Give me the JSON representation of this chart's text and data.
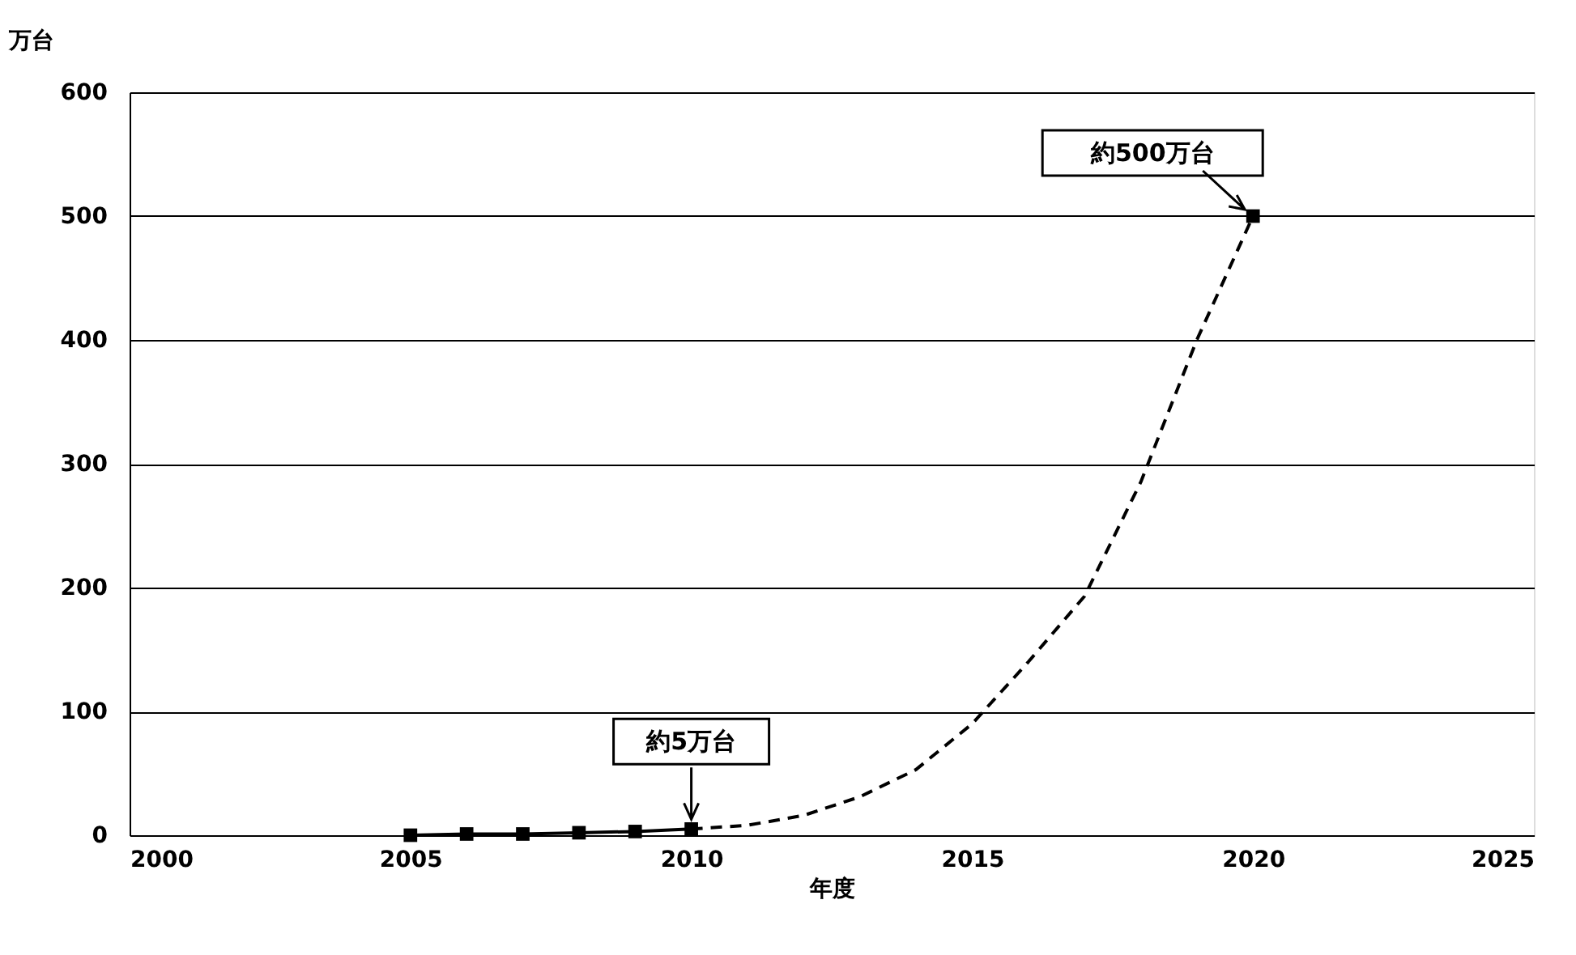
{
  "chart_data": {
    "type": "line",
    "xlabel": "年度",
    "ylabel": "万台",
    "series": [
      {
        "color": "#000000",
        "marker": "square",
        "line_style": "solid",
        "x": [
          2005,
          2006,
          2007,
          2008,
          2009,
          2010
        ],
        "values": [
          0,
          1,
          1,
          2,
          3,
          5
        ]
      },
      {
        "color": "#000000",
        "marker": "none",
        "line_style": "dashed",
        "x": [
          2010,
          2011,
          2012,
          2013,
          2014,
          2015,
          2016,
          2017,
          2018,
          2019,
          2020
        ],
        "values": [
          5,
          8,
          16,
          31,
          53,
          90,
          140,
          193,
          285,
          400,
          500
        ]
      },
      {
        "type": "scatter",
        "color": "#000000",
        "marker": "square",
        "x": [
          2020
        ],
        "values": [
          500
        ]
      }
    ],
    "annotations": [
      {
        "text": "約5万台",
        "x": 2010,
        "y": 5
      },
      {
        "text": "約500万台",
        "x": 2020,
        "y": 500
      }
    ],
    "xlim": [
      2000,
      2025
    ],
    "xticks": [
      2000,
      2005,
      2010,
      2015,
      2020,
      2025
    ],
    "ylim": [
      0,
      600
    ],
    "yticks": [
      0,
      100,
      200,
      300,
      400,
      500,
      600
    ],
    "grid": "y",
    "legend": false
  }
}
